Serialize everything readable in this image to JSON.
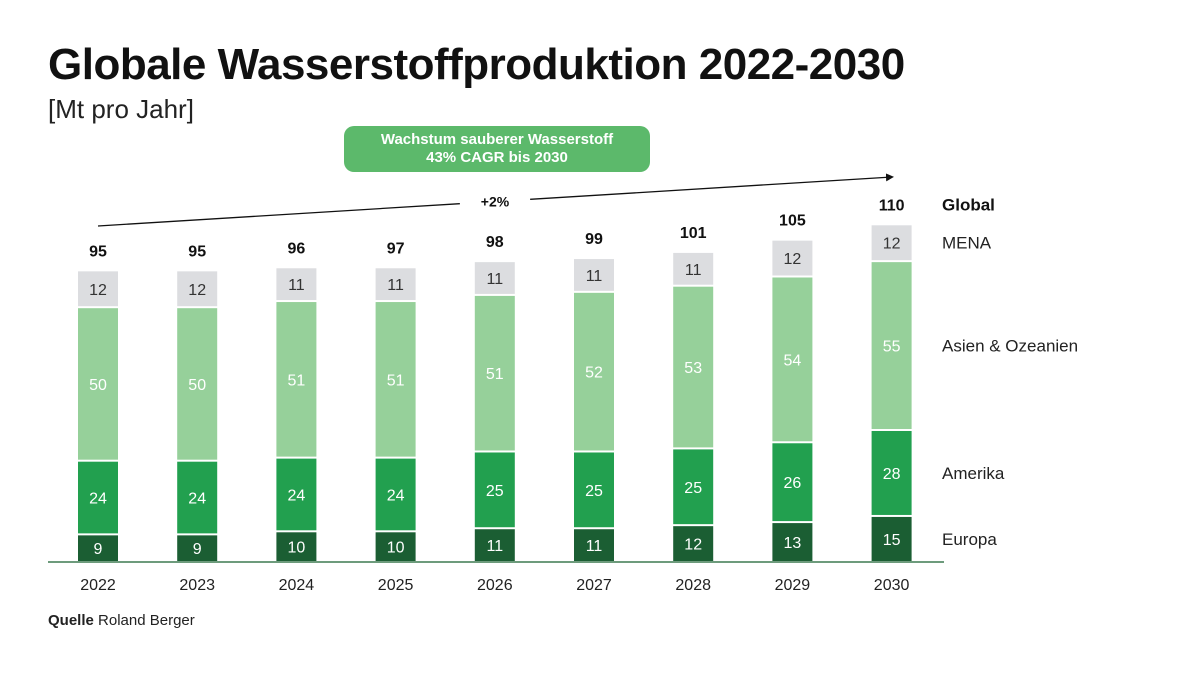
{
  "title": "Globale Wasserstoffproduktion 2022-2030",
  "subtitle": "[Mt pro Jahr]",
  "callout": {
    "line1": "Wachstum sauberer Wasserstoff",
    "line2": "43% CAGR bis 2030"
  },
  "growth_label": "+2%",
  "source": {
    "label": "Quelle",
    "text": "Roland Berger"
  },
  "colors": {
    "europa": "#1b5e33",
    "amerika": "#22a04f",
    "asien": "#96d09a",
    "mena": "#dcdde0",
    "callout_bg": "#5cb96b",
    "axis": "#3d7a50"
  },
  "chart_data": {
    "type": "bar",
    "stacked": true,
    "title": "Globale Wasserstoffproduktion 2022-2030",
    "unit": "Mt pro Jahr",
    "categories": [
      "2022",
      "2023",
      "2024",
      "2025",
      "2026",
      "2027",
      "2028",
      "2029",
      "2030"
    ],
    "series": [
      {
        "name": "Europa",
        "values": [
          9,
          9,
          10,
          10,
          11,
          11,
          12,
          13,
          15
        ]
      },
      {
        "name": "Amerika",
        "values": [
          24,
          24,
          24,
          24,
          25,
          25,
          25,
          26,
          28
        ]
      },
      {
        "name": "Asien & Ozeanien",
        "values": [
          50,
          50,
          51,
          51,
          51,
          52,
          53,
          54,
          55
        ]
      },
      {
        "name": "MENA",
        "values": [
          12,
          12,
          11,
          11,
          11,
          11,
          11,
          12,
          12
        ]
      }
    ],
    "totals_label": "Global",
    "totals": [
      95,
      95,
      96,
      97,
      98,
      99,
      101,
      105,
      110
    ],
    "annotations": [
      "Wachstum sauberer Wasserstoff 43% CAGR bis 2030",
      "+2%"
    ],
    "ylim": [
      0,
      110
    ]
  }
}
